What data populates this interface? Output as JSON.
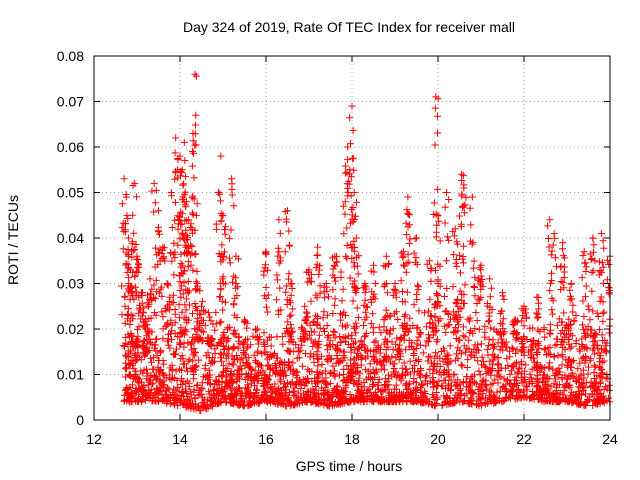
{
  "chart_data": {
    "type": "scatter",
    "title": "Day 324 of 2019, Rate Of TEC Index for receiver mall",
    "xlabel": "GPS time / hours",
    "ylabel": "ROTI / TECUs",
    "xlim": [
      12,
      24
    ],
    "ylim": [
      0,
      0.08
    ],
    "xticks": [
      "12",
      "14",
      "16",
      "18",
      "20",
      "22",
      "24"
    ],
    "yticks": [
      "0",
      "0.01",
      "0.02",
      "0.03",
      "0.04",
      "0.05",
      "0.06",
      "0.07",
      "0.08"
    ],
    "grid": true,
    "marker": "+",
    "color": "#ff0000",
    "series": [
      {
        "name": "ROTI",
        "points": [
          [
            12.7,
            0.053
          ],
          [
            12.75,
            0.049
          ],
          [
            12.8,
            0.04
          ],
          [
            12.85,
            0.033
          ],
          [
            12.9,
            0.045
          ],
          [
            12.95,
            0.052
          ],
          [
            13.0,
            0.036
          ],
          [
            13.1,
            0.028
          ],
          [
            13.2,
            0.022
          ],
          [
            13.3,
            0.031
          ],
          [
            13.4,
            0.052
          ],
          [
            13.5,
            0.046
          ],
          [
            13.6,
            0.038
          ],
          [
            13.7,
            0.03
          ],
          [
            13.8,
            0.05
          ],
          [
            13.9,
            0.062
          ],
          [
            14.0,
            0.058
          ],
          [
            14.05,
            0.055
          ],
          [
            14.1,
            0.061
          ],
          [
            14.15,
            0.048
          ],
          [
            14.2,
            0.044
          ],
          [
            14.3,
            0.063
          ],
          [
            14.35,
            0.076
          ],
          [
            14.4,
            0.03
          ],
          [
            14.5,
            0.025
          ],
          [
            14.7,
            0.018
          ],
          [
            14.9,
            0.05
          ],
          [
            14.95,
            0.058
          ],
          [
            15.0,
            0.045
          ],
          [
            15.2,
            0.053
          ],
          [
            15.3,
            0.036
          ],
          [
            15.5,
            0.022
          ],
          [
            15.8,
            0.02
          ],
          [
            16.0,
            0.037
          ],
          [
            16.3,
            0.044
          ],
          [
            16.5,
            0.046
          ],
          [
            16.6,
            0.03
          ],
          [
            16.9,
            0.025
          ],
          [
            17.0,
            0.033
          ],
          [
            17.2,
            0.038
          ],
          [
            17.4,
            0.03
          ],
          [
            17.6,
            0.036
          ],
          [
            17.8,
            0.047
          ],
          [
            17.9,
            0.06
          ],
          [
            17.95,
            0.055
          ],
          [
            18.0,
            0.069
          ],
          [
            18.05,
            0.05
          ],
          [
            18.1,
            0.04
          ],
          [
            18.3,
            0.03
          ],
          [
            18.5,
            0.034
          ],
          [
            18.8,
            0.036
          ],
          [
            19.0,
            0.03
          ],
          [
            19.2,
            0.037
          ],
          [
            19.3,
            0.049
          ],
          [
            19.5,
            0.04
          ],
          [
            19.8,
            0.035
          ],
          [
            19.95,
            0.071
          ],
          [
            20.0,
            0.045
          ],
          [
            20.2,
            0.05
          ],
          [
            20.4,
            0.042
          ],
          [
            20.55,
            0.054
          ],
          [
            20.6,
            0.051
          ],
          [
            20.8,
            0.049
          ],
          [
            21.0,
            0.034
          ],
          [
            21.2,
            0.031
          ],
          [
            21.5,
            0.028
          ],
          [
            21.8,
            0.022
          ],
          [
            22.0,
            0.025
          ],
          [
            22.3,
            0.027
          ],
          [
            22.6,
            0.044
          ],
          [
            22.7,
            0.041
          ],
          [
            22.9,
            0.039
          ],
          [
            23.1,
            0.03
          ],
          [
            23.4,
            0.037
          ],
          [
            23.6,
            0.04
          ],
          [
            23.8,
            0.041
          ],
          [
            24.0,
            0.036
          ]
        ],
        "baseline_envelope": {
          "x": [
            12.7,
            13.5,
            14.0,
            14.5,
            15.0,
            15.5,
            16.0,
            16.5,
            17.0,
            17.5,
            18.0,
            18.5,
            19.0,
            19.5,
            20.0,
            20.5,
            21.0,
            21.5,
            22.0,
            22.5,
            23.0,
            23.5,
            24.0
          ],
          "low": [
            0.004,
            0.004,
            0.003,
            0.002,
            0.004,
            0.003,
            0.004,
            0.003,
            0.004,
            0.003,
            0.004,
            0.004,
            0.004,
            0.004,
            0.003,
            0.004,
            0.003,
            0.004,
            0.005,
            0.004,
            0.004,
            0.003,
            0.004
          ],
          "high": [
            0.02,
            0.025,
            0.03,
            0.028,
            0.026,
            0.02,
            0.02,
            0.022,
            0.025,
            0.026,
            0.024,
            0.025,
            0.026,
            0.027,
            0.03,
            0.03,
            0.027,
            0.024,
            0.022,
            0.023,
            0.025,
            0.027,
            0.03
          ]
        }
      }
    ]
  }
}
